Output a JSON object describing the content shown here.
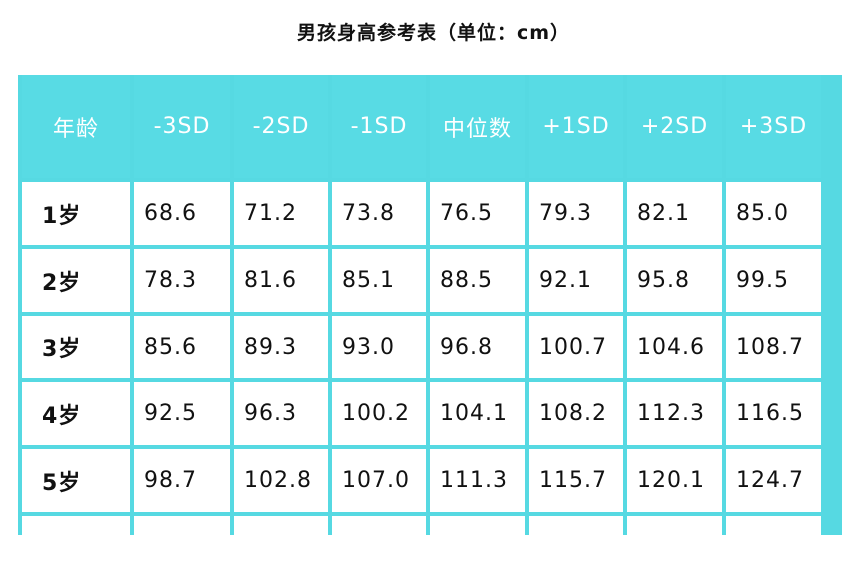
{
  "title": "男孩身高参考表（单位：cm）",
  "header_color": "#58dbe4",
  "columns": [
    "年龄",
    "-3SD",
    "-2SD",
    "-1SD",
    "中位数",
    "+1SD",
    "+2SD",
    "+3SD"
  ],
  "rows": [
    [
      "1岁",
      "68.6",
      "71.2",
      "73.8",
      "76.5",
      "79.3",
      "82.1",
      "85.0"
    ],
    [
      "2岁",
      "78.3",
      "81.6",
      "85.1",
      "88.5",
      "92.1",
      "95.8",
      "99.5"
    ],
    [
      "3岁",
      "85.6",
      "89.3",
      "93.0",
      "96.8",
      "100.7",
      "104.6",
      "108.7"
    ],
    [
      "4岁",
      "92.5",
      "96.3",
      "100.2",
      "104.1",
      "108.2",
      "112.3",
      "116.5"
    ],
    [
      "5岁",
      "98.7",
      "102.8",
      "107.0",
      "111.3",
      "115.7",
      "120.1",
      "124.7"
    ]
  ]
}
